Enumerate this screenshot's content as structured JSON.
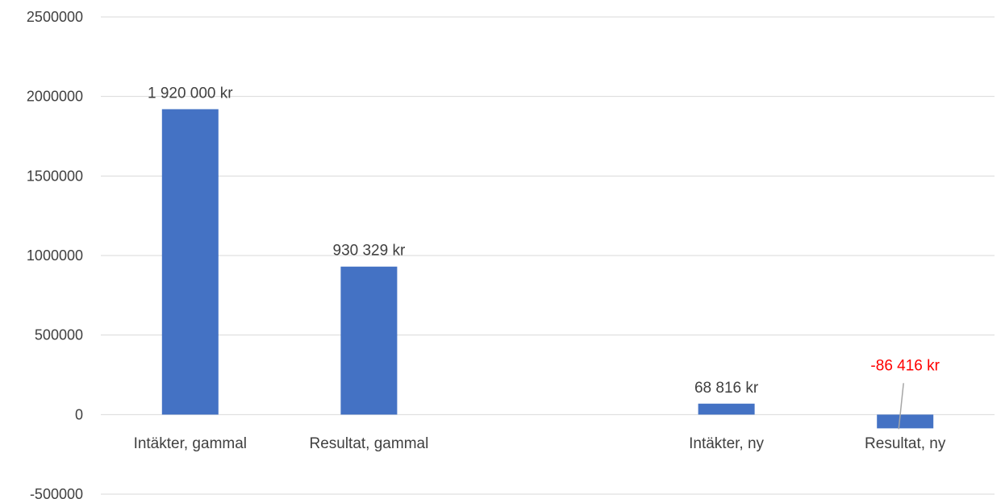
{
  "chart_data": {
    "type": "bar",
    "categories": [
      "Intäkter, gammal",
      "Resultat, gammal",
      "",
      "Intäkter, ny",
      "Resultat, ny"
    ],
    "values": [
      1920000,
      930329,
      null,
      68816,
      -86416
    ],
    "data_labels": [
      "1 920 000 kr",
      "930 329 kr",
      "",
      "68 816 kr",
      "-86 416 kr"
    ],
    "ylim": [
      -500000,
      2500000
    ],
    "yticks": [
      2500000,
      2000000,
      1500000,
      1000000,
      500000,
      0,
      -500000
    ],
    "ytick_labels": [
      "2500000",
      "2000000",
      "1500000",
      "1000000",
      "500000",
      "0",
      "-500000"
    ],
    "grid": true,
    "legend": false,
    "title": "",
    "xlabel": "",
    "ylabel": ""
  },
  "colors": {
    "bar": "#4472C4",
    "label": "#404040",
    "negative_label": "#FF0000",
    "grid": "#D9D9D9",
    "leader": "#A6A6A6"
  }
}
